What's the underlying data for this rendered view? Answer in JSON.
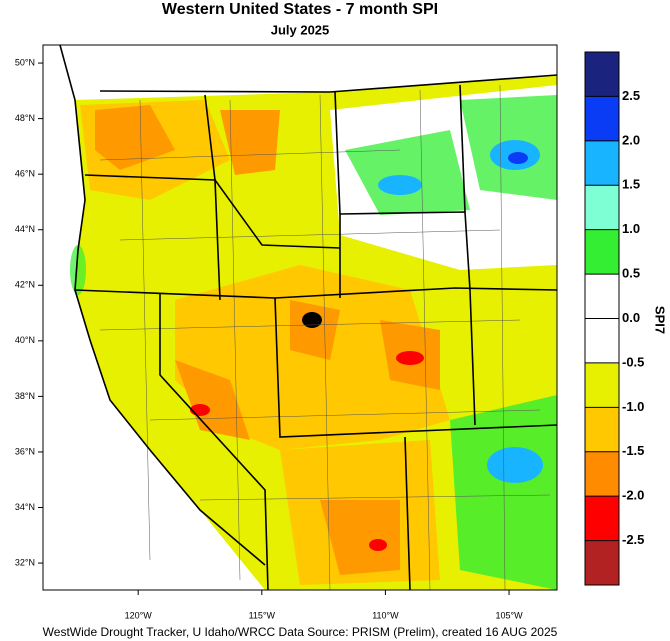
{
  "title": "Western United States - 7 month SPI",
  "subtitle": "July 2025",
  "credit": "WestWide Drought Tracker, U Idaho/WRCC Data Source: PRISM (Prelim), created 16 AUG 2025",
  "map": {
    "xlim": [
      -123.85,
      -103.06
    ],
    "ylim": [
      31.03,
      50.65
    ],
    "xticks": [
      {
        "value": -120,
        "label": "120°W"
      },
      {
        "value": -115,
        "label": "115°W"
      },
      {
        "value": -110,
        "label": "110°W"
      },
      {
        "value": -105,
        "label": "105°W"
      }
    ],
    "yticks": [
      {
        "value": 32,
        "label": "32°N"
      },
      {
        "value": 34,
        "label": "34°N"
      },
      {
        "value": 36,
        "label": "36°N"
      },
      {
        "value": 38,
        "label": "38°N"
      },
      {
        "value": 40,
        "label": "40°N"
      },
      {
        "value": 42,
        "label": "42°N"
      },
      {
        "value": 44,
        "label": "44°N"
      },
      {
        "value": 46,
        "label": "46°N"
      },
      {
        "value": 48,
        "label": "48°N"
      },
      {
        "value": 50,
        "label": "50°N"
      }
    ]
  },
  "colorbar": {
    "title": "SPI7",
    "lim": [
      -3,
      3
    ],
    "colors": [
      "#b22222",
      "#ff0000",
      "#ff8c00",
      "#ffc800",
      "#e6f000",
      "#ffffff",
      "#ffffff",
      "#33ee33",
      "#7fffd4",
      "#19b4ff",
      "#0a3cf5",
      "#1a237e"
    ],
    "ticks": [
      -2.5,
      {
        "value": -2,
        "label": "-2.0"
      },
      -1.5,
      {
        "value": -1,
        "label": "-1.0"
      },
      -0.5,
      {
        "value": 0,
        "label": "0.0"
      },
      0.5,
      {
        "value": 1,
        "label": "1.0"
      },
      1.5,
      {
        "value": 2,
        "label": "2.0"
      },
      2.5
    ]
  }
}
